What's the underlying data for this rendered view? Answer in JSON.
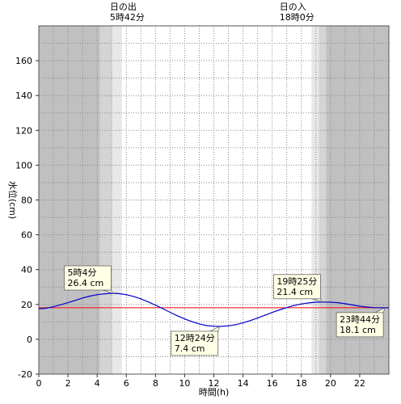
{
  "chart_data": {
    "type": "line",
    "xlabel": "時間(h)",
    "ylabel": "水位(cm)",
    "xlim": [
      0,
      24
    ],
    "ylim": [
      -20,
      180
    ],
    "x_ticks": [
      0,
      2,
      4,
      6,
      8,
      10,
      12,
      14,
      16,
      18,
      20,
      22
    ],
    "y_ticks": [
      -20,
      0,
      20,
      40,
      60,
      80,
      100,
      120,
      140,
      160
    ],
    "grid": true,
    "colors": {
      "curve": "#0000cc",
      "reference_line": "#ff0000",
      "night": "#c0c0c0",
      "twilight_dark": "#d4d4d4",
      "twilight_light": "#e8e8e8",
      "callout_bg": "#ffffe6"
    },
    "reference_level": 18.1,
    "sun": {
      "sunrise": {
        "heading": "日の出",
        "time_label": "5時42分",
        "hour": 5.7
      },
      "sunset": {
        "heading": "日の入",
        "time_label": "18時0分",
        "hour": 18.0
      },
      "bands": [
        {
          "from": 0,
          "to": 4.2,
          "shade": "night"
        },
        {
          "from": 4.2,
          "to": 5.0,
          "shade": "twilight_dark"
        },
        {
          "from": 5.0,
          "to": 5.7,
          "shade": "twilight_light"
        },
        {
          "from": 18.7,
          "to": 19.2,
          "shade": "twilight_light"
        },
        {
          "from": 19.2,
          "to": 19.7,
          "shade": "twilight_dark"
        },
        {
          "from": 19.7,
          "to": 24,
          "shade": "night"
        }
      ]
    },
    "series": [
      {
        "x": [
          0,
          0.5,
          1,
          1.5,
          2,
          2.5,
          3,
          3.5,
          4,
          4.5,
          5,
          5.07,
          5.5,
          6,
          6.5,
          7,
          7.5,
          8,
          8.5,
          9,
          9.5,
          10,
          10.5,
          11,
          11.5,
          12,
          12.4,
          13,
          13.5,
          14,
          14.5,
          15,
          15.5,
          16,
          16.5,
          17,
          17.5,
          18,
          18.5,
          19,
          19.42,
          20,
          20.5,
          21,
          21.5,
          22,
          22.5,
          23,
          23.73,
          24
        ],
        "values": [
          17.5,
          17.8,
          18.7,
          19.8,
          21.0,
          22.3,
          23.7,
          24.8,
          25.6,
          26.1,
          26.4,
          26.4,
          26.2,
          25.6,
          24.6,
          23.2,
          21.5,
          19.6,
          17.6,
          15.5,
          13.5,
          11.7,
          10.1,
          8.8,
          7.9,
          7.5,
          7.4,
          7.7,
          8.4,
          9.4,
          10.7,
          12.2,
          13.8,
          15.4,
          16.9,
          18.2,
          19.4,
          20.3,
          20.9,
          21.3,
          21.4,
          21.3,
          21.0,
          20.4,
          19.7,
          19.0,
          18.5,
          18.2,
          18.1,
          18.1
        ]
      }
    ],
    "annotations": [
      {
        "time_label": "5時4分",
        "value_label": "26.4 cm",
        "hour": 5.07,
        "level": 26.4,
        "kind": "high"
      },
      {
        "time_label": "12時24分",
        "value_label": "7.4 cm",
        "hour": 12.4,
        "level": 7.4,
        "kind": "low"
      },
      {
        "time_label": "19時25分",
        "value_label": "21.4 cm",
        "hour": 19.42,
        "level": 21.4,
        "kind": "high"
      },
      {
        "time_label": "23時44分",
        "value_label": "18.1 cm",
        "hour": 23.73,
        "level": 18.1,
        "kind": "low"
      }
    ]
  }
}
